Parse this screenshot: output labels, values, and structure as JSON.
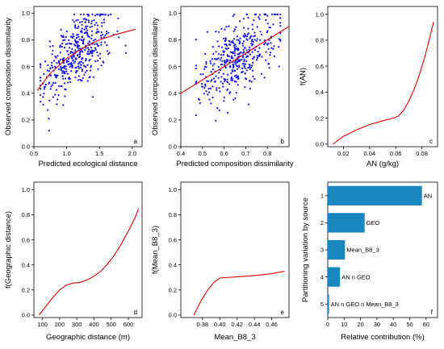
{
  "chart_data": [
    {
      "id": "a",
      "type": "scatter",
      "panel_label": "a",
      "xlabel": "Predicted ecological distance",
      "ylabel": "Observed composition dissimilarity",
      "xlim": [
        0.5,
        2.15
      ],
      "ylim": [
        0,
        1.05
      ],
      "xticks": [
        "0.5",
        "1.0",
        "1.5",
        "2.0"
      ],
      "yticks": [
        "0.0",
        "0.2",
        "0.4",
        "0.6",
        "0.8",
        "1.0"
      ],
      "scatter": {
        "n": 420,
        "x_center": 1.15,
        "x_sd": 0.27,
        "x_min": 0.6,
        "x_max": 2.05,
        "y_noise_sd": 0.14
      },
      "fit_curve": {
        "x": [
          0.55,
          0.75,
          1.0,
          1.25,
          1.5,
          1.75,
          2.05
        ],
        "y": [
          0.42,
          0.55,
          0.66,
          0.74,
          0.8,
          0.84,
          0.88
        ]
      }
    },
    {
      "id": "b",
      "type": "scatter",
      "panel_label": "b",
      "xlabel": "Predicted composition dissimilarity",
      "ylabel": "Observed composition dissimilarity",
      "xlim": [
        0.4,
        0.9
      ],
      "ylim": [
        0,
        1.05
      ],
      "xticks": [
        "0.4",
        "0.5",
        "0.6",
        "0.7",
        "0.8"
      ],
      "yticks": [
        "0.0",
        "0.2",
        "0.4",
        "0.6",
        "0.8",
        "1.0"
      ],
      "scatter": {
        "n": 420,
        "x_center": 0.66,
        "x_sd": 0.09,
        "x_min": 0.47,
        "x_max": 0.86,
        "y_noise_sd": 0.14
      },
      "fit_curve": {
        "x": [
          0.4,
          0.5,
          0.6,
          0.7,
          0.8,
          0.9
        ],
        "y": [
          0.4,
          0.5,
          0.6,
          0.7,
          0.8,
          0.9
        ]
      }
    },
    {
      "id": "c",
      "type": "line",
      "panel_label": "c",
      "xlabel": "AN (g/kg)",
      "ylabel": "f(AN)",
      "xlim": [
        0.008,
        0.092
      ],
      "ylim": [
        -0.02,
        1.06
      ],
      "xticks": [
        "0.02",
        "0.04",
        "0.06",
        "0.08"
      ],
      "yticks": [
        "0.0",
        "0.2",
        "0.4",
        "0.6",
        "0.8",
        "1.0"
      ],
      "x": [
        0.012,
        0.02,
        0.03,
        0.04,
        0.05,
        0.058,
        0.062,
        0.066,
        0.07,
        0.074,
        0.078,
        0.082,
        0.086,
        0.089
      ],
      "y": [
        0.0,
        0.06,
        0.11,
        0.15,
        0.18,
        0.2,
        0.215,
        0.26,
        0.33,
        0.42,
        0.53,
        0.66,
        0.82,
        0.94
      ]
    },
    {
      "id": "d",
      "type": "line",
      "panel_label": "d",
      "xlabel": "Geographic distance (m)",
      "ylabel": "f(Geographic distance)",
      "xlim": [
        50,
        680
      ],
      "ylim": [
        -0.02,
        1.06
      ],
      "xticks": [
        "100",
        "200",
        "300",
        "400",
        "500",
        "600"
      ],
      "yticks": [
        "0.0",
        "0.2",
        "0.4",
        "0.6",
        "0.8",
        "1.0"
      ],
      "x": [
        80,
        120,
        160,
        200,
        240,
        280,
        320,
        360,
        400,
        440,
        480,
        520,
        560,
        600,
        640,
        660
      ],
      "y": [
        0.0,
        0.07,
        0.14,
        0.2,
        0.24,
        0.255,
        0.26,
        0.28,
        0.31,
        0.35,
        0.41,
        0.48,
        0.57,
        0.67,
        0.78,
        0.85
      ]
    },
    {
      "id": "e",
      "type": "line",
      "panel_label": "e",
      "xlabel": "Mean_B8_3",
      "ylabel": "f(Mean_B8_3)",
      "xlim": [
        0.355,
        0.48
      ],
      "ylim": [
        -0.02,
        1.06
      ],
      "xticks": [
        "0.38",
        "0.40",
        "0.42",
        "0.44",
        "0.46"
      ],
      "yticks": [
        "0.0",
        "0.2",
        "0.4",
        "0.6",
        "0.8",
        "1.0"
      ],
      "x": [
        0.37,
        0.378,
        0.386,
        0.394,
        0.4,
        0.406,
        0.42,
        0.44,
        0.46,
        0.475
      ],
      "y": [
        0.0,
        0.11,
        0.2,
        0.265,
        0.295,
        0.298,
        0.305,
        0.315,
        0.33,
        0.35
      ]
    },
    {
      "id": "f",
      "type": "bar",
      "panel_label": "f",
      "orientation": "horizontal",
      "xlabel": "Relative contribution (%)",
      "ylabel": "Partitioning variation by source",
      "xlim": [
        0,
        67
      ],
      "xticks": [
        "0",
        "10",
        "20",
        "30",
        "40",
        "50",
        "60"
      ],
      "categories": [
        "1",
        "2",
        "3",
        "4",
        "5"
      ],
      "bar_labels": [
        "AN",
        "GEO",
        "Mean_B8_3",
        "AN n GEO",
        "AN n GEO n Mean_B8_3"
      ],
      "values": [
        57.5,
        22.5,
        10.5,
        7.5,
        0.8
      ]
    }
  ],
  "colors": {
    "points": "#1010ee",
    "curve": "#e00000",
    "bars": "#1a86c0"
  }
}
